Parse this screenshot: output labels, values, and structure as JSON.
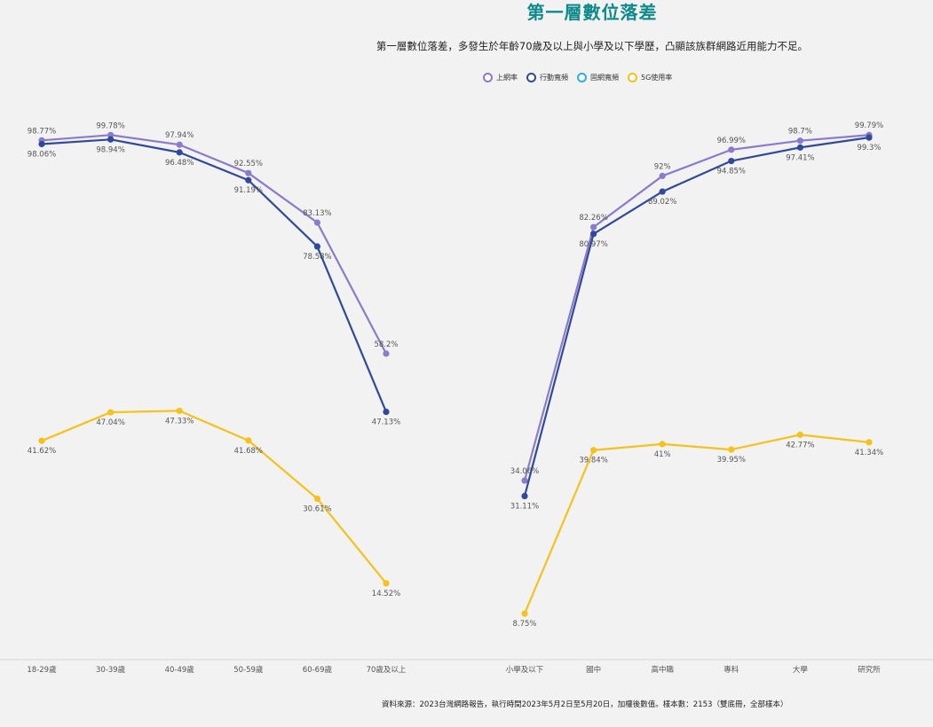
{
  "title": "第一層數位落差",
  "subtitle": "第一層數位落差，多發生於年齡70歲及以上與小學及以下學歷，凸顯該族群網路近用能力不足。",
  "source": "資料來源：2023台灣網路報告，執行時間2023年5月2日至5月20日，加權後數值。樣本數：2153（雙底冊，全部樣本）",
  "legend": [
    {
      "name": "上網率",
      "color": "#8b7bc9"
    },
    {
      "name": "行動寬頻",
      "color": "#2f4a9a"
    },
    {
      "name": "固網寬頻",
      "color": "#2ab0e6"
    },
    {
      "name": "5G使用率",
      "color": "#f5c21b"
    }
  ],
  "chart_data": [
    {
      "type": "line",
      "categories": [
        "18-29歲",
        "30-39歲",
        "40-49歲",
        "50-59歲",
        "60-69歲",
        "70歲及以上"
      ],
      "series": [
        {
          "name": "上網率",
          "color": "#8b7bc9",
          "values": [
            98.77,
            99.78,
            97.94,
            92.55,
            83.13,
            58.2
          ],
          "labels": [
            "98.77%",
            "99.78%",
            "97.94%",
            "92.55%",
            "83.13%",
            "58.2%"
          ]
        },
        {
          "name": "行動寬頻",
          "color": "#2f4a9a",
          "values": [
            98.06,
            98.94,
            96.48,
            91.19,
            78.58,
            47.13
          ],
          "labels": [
            "98.06%",
            "98.94%",
            "96.48%",
            "91.19%",
            "78.58%",
            "47.13%"
          ]
        },
        {
          "name": "5G使用率",
          "color": "#f5c21b",
          "values": [
            41.62,
            47.04,
            47.33,
            41.68,
            30.61,
            14.52
          ],
          "labels": [
            "41.62%",
            "47.04%",
            "47.33%",
            "41.68%",
            "30.61%",
            "14.52%"
          ]
        }
      ]
    },
    {
      "type": "line",
      "categories": [
        "小學及以下",
        "國中",
        "高中職",
        "專科",
        "大學",
        "研究所"
      ],
      "series": [
        {
          "name": "上網率",
          "color": "#8b7bc9",
          "values": [
            34.06,
            82.26,
            92,
            96.99,
            98.7,
            99.79
          ],
          "labels": [
            "34.06%",
            "82.26%",
            "92%",
            "96.99%",
            "98.7%",
            "99.79%"
          ]
        },
        {
          "name": "行動寬頻",
          "color": "#2f4a9a",
          "values": [
            31.11,
            80.97,
            89.02,
            94.85,
            97.41,
            99.3
          ],
          "labels": [
            "31.11%",
            "80.97%",
            "89.02%",
            "94.85%",
            "97.41%",
            "99.3%"
          ]
        },
        {
          "name": "5G使用率",
          "color": "#f5c21b",
          "values": [
            8.75,
            39.84,
            41,
            39.95,
            42.77,
            41.34
          ],
          "labels": [
            "8.75%",
            "39.84%",
            "41%",
            "39.95%",
            "42.77%",
            "41.34%"
          ]
        }
      ]
    }
  ]
}
